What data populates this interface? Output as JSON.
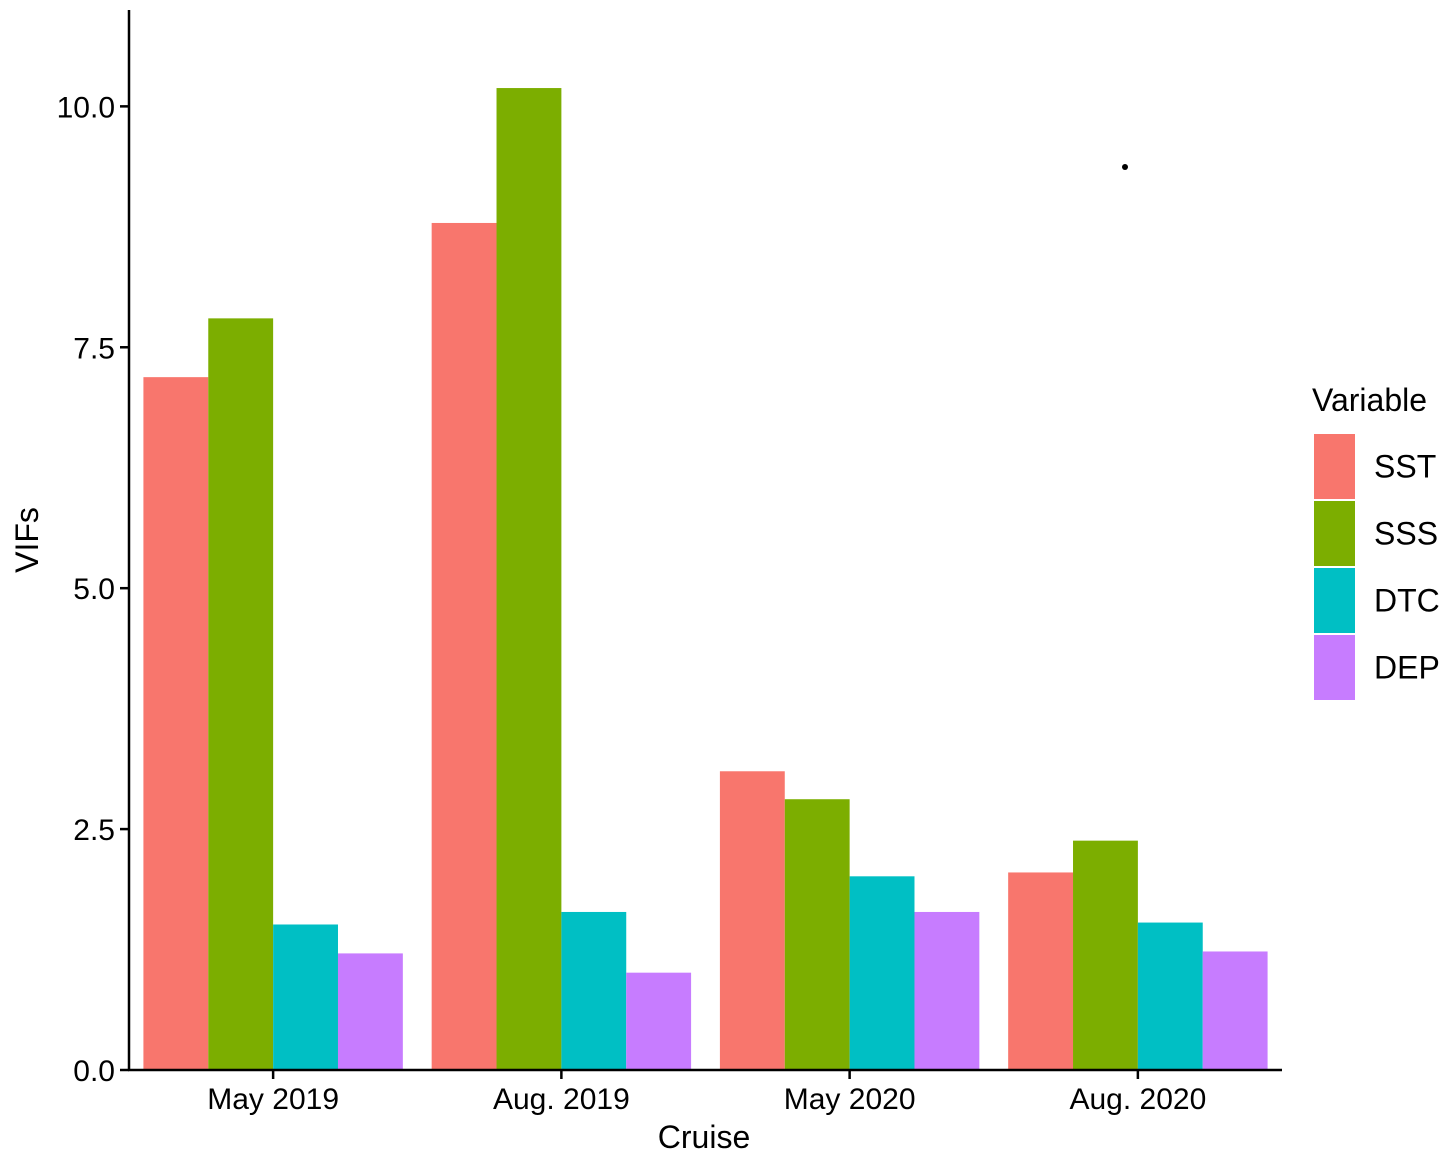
{
  "chart_data": {
    "type": "bar",
    "xlabel": "Cruise",
    "ylabel": "VIFs",
    "categories": [
      "May 2019",
      "Aug. 2019",
      "May 2020",
      "Aug. 2020"
    ],
    "series": [
      {
        "name": "SST",
        "color": "#F8766D",
        "values": [
          7.19,
          8.79,
          3.1,
          2.05
        ]
      },
      {
        "name": "SSS",
        "color": "#7CAE00",
        "values": [
          7.8,
          10.19,
          2.81,
          2.38
        ]
      },
      {
        "name": "DTC",
        "color": "#00BFC4",
        "values": [
          1.51,
          1.64,
          2.01,
          1.53
        ]
      },
      {
        "name": "DEP",
        "color": "#C77CFF",
        "values": [
          1.21,
          1.01,
          1.64,
          1.23
        ]
      }
    ],
    "ylim": [
      0,
      11
    ],
    "yticks": [
      "0.0",
      "2.5",
      "5.0",
      "7.5",
      "10.0"
    ],
    "ytick_values": [
      0,
      2.5,
      5,
      7.5,
      10
    ],
    "grid": false,
    "legend": {
      "title": "Variable",
      "position": "right"
    }
  }
}
